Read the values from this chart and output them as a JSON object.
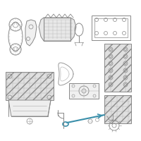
{
  "bg_color": "#ffffff",
  "lc": "#aaaaaa",
  "lc2": "#888888",
  "dipc": "#3a8faa",
  "lw": 0.6,
  "lw2": 0.4
}
